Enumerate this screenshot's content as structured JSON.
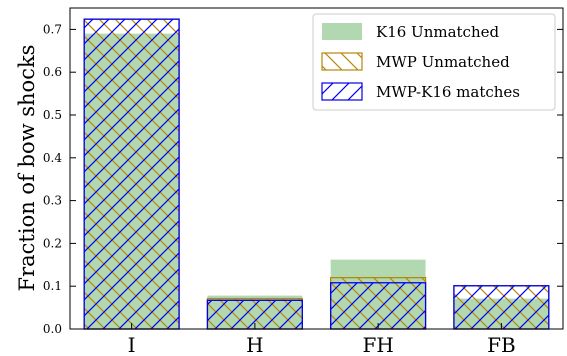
{
  "chart_data": {
    "type": "bar",
    "categories": [
      "I",
      "H",
      "FH",
      "FB"
    ],
    "ylabel": "Fraction of bow shocks",
    "xlabel": "",
    "ylim": [
      0,
      0.75
    ],
    "yticks": [
      0.0,
      0.1,
      0.2,
      0.3,
      0.4,
      0.5,
      0.6,
      0.7
    ],
    "ytick_labels": [
      "0.0",
      "0.1",
      "0.2",
      "0.3",
      "0.4",
      "0.5",
      "0.6",
      "0.7"
    ],
    "legend_position": "top-right",
    "grid": false,
    "series": [
      {
        "name": "K16 Unmatched",
        "values": [
          0.69,
          0.078,
          0.162,
          0.071
        ],
        "style": "filled",
        "color": "#b2d8b2"
      },
      {
        "name": "MWP Unmatched",
        "values": [
          0.724,
          0.071,
          0.12,
          0.101
        ],
        "style": "hatch-backslash",
        "color": "#b8860b"
      },
      {
        "name": "MWP-K16 matches",
        "values": [
          0.724,
          0.067,
          0.108,
          0.101
        ],
        "style": "hatch-slash",
        "color": "#0000ee"
      }
    ]
  }
}
